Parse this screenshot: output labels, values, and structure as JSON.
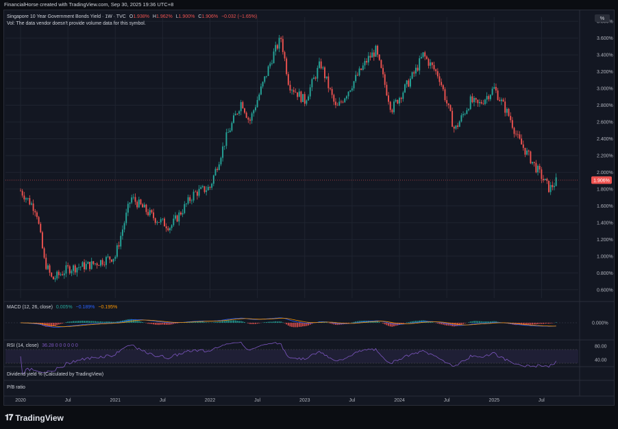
{
  "header": {
    "created_by": "FinancialHorse created with TradingView.com, Sep 30, 2025 19:36 UTC+8"
  },
  "legend": {
    "symbol": "Singapore 10 Year Government Bonds Yield · 1W · TVC",
    "o_label": "O",
    "o_value": "1.938%",
    "h_label": "H",
    "h_value": "1.962%",
    "l_label": "L",
    "l_value": "1.900%",
    "c_label": "C",
    "c_value": "1.906%",
    "change": "−0.032 (−1.65%)",
    "vol_note": "Vol: The data vendor doesn't provide volume data for this symbol."
  },
  "price_axis": {
    "unit_button": "%",
    "ticks": [
      "3.800%",
      "3.600%",
      "3.400%",
      "3.200%",
      "3.000%",
      "2.800%",
      "2.600%",
      "2.400%",
      "2.200%",
      "2.000%",
      "1.800%",
      "1.600%",
      "1.400%",
      "1.200%",
      "1.000%",
      "0.800%",
      "0.600%"
    ],
    "current_label": "1.906%"
  },
  "time_axis": {
    "ticks": [
      "2020",
      "Jul",
      "2021",
      "Jul",
      "2022",
      "Jul",
      "2023",
      "Jul",
      "2024",
      "Jul",
      "2025",
      "Jul"
    ]
  },
  "macd": {
    "label": "MACD (12, 26, close)",
    "v1": "0.005%",
    "v2": "−0.189%",
    "v3": "−0.195%",
    "axis_tick": "0.000%"
  },
  "rsi": {
    "label": "RSI (14, close)",
    "values": "36.28  0  0  0  0  0  0",
    "ticks": [
      "80.00",
      "40.00"
    ]
  },
  "panes": {
    "dividend": "Dividend yield % (Calculated by TradingView)",
    "pe": "P/B ratio"
  },
  "footer": {
    "brand": "TradingView"
  },
  "colors": {
    "up": "#26a69a",
    "down": "#ef5350",
    "macd": "#2962ff",
    "signal": "#ff9800",
    "rsi": "#7e57c2",
    "bg": "#131722"
  },
  "chart_data": {
    "type": "candlestick",
    "title": "Singapore 10 Year Government Bonds Yield · 1W · TVC",
    "ylabel": "%",
    "ylim": [
      0.5,
      3.85
    ],
    "approx_close_path": [
      {
        "date": "2020-01",
        "close": 1.78
      },
      {
        "date": "2020-03",
        "close": 1.55
      },
      {
        "date": "2020-04",
        "close": 0.95
      },
      {
        "date": "2020-05",
        "close": 0.72
      },
      {
        "date": "2020-07",
        "close": 0.85
      },
      {
        "date": "2020-10",
        "close": 0.9
      },
      {
        "date": "2021-01",
        "close": 1.0
      },
      {
        "date": "2021-03",
        "close": 1.7
      },
      {
        "date": "2021-06",
        "close": 1.45
      },
      {
        "date": "2021-08",
        "close": 1.35
      },
      {
        "date": "2021-11",
        "close": 1.75
      },
      {
        "date": "2022-01",
        "close": 1.82
      },
      {
        "date": "2022-03",
        "close": 2.4
      },
      {
        "date": "2022-05",
        "close": 2.85
      },
      {
        "date": "2022-06",
        "close": 2.6
      },
      {
        "date": "2022-09",
        "close": 3.4
      },
      {
        "date": "2022-10",
        "close": 3.6
      },
      {
        "date": "2022-11",
        "close": 3.05
      },
      {
        "date": "2023-01",
        "close": 2.85
      },
      {
        "date": "2023-03",
        "close": 3.3
      },
      {
        "date": "2023-05",
        "close": 2.75
      },
      {
        "date": "2023-07",
        "close": 3.05
      },
      {
        "date": "2023-09",
        "close": 3.35
      },
      {
        "date": "2023-10",
        "close": 3.45
      },
      {
        "date": "2023-12",
        "close": 2.75
      },
      {
        "date": "2024-03",
        "close": 3.2
      },
      {
        "date": "2024-04",
        "close": 3.4
      },
      {
        "date": "2024-06",
        "close": 3.15
      },
      {
        "date": "2024-08",
        "close": 2.5
      },
      {
        "date": "2024-10",
        "close": 2.85
      },
      {
        "date": "2024-11",
        "close": 2.8
      },
      {
        "date": "2025-01",
        "close": 3.0
      },
      {
        "date": "2025-03",
        "close": 2.65
      },
      {
        "date": "2025-04",
        "close": 2.4
      },
      {
        "date": "2025-06",
        "close": 2.1
      },
      {
        "date": "2025-08",
        "close": 1.8
      },
      {
        "date": "2025-09",
        "close": 1.906
      }
    ]
  }
}
